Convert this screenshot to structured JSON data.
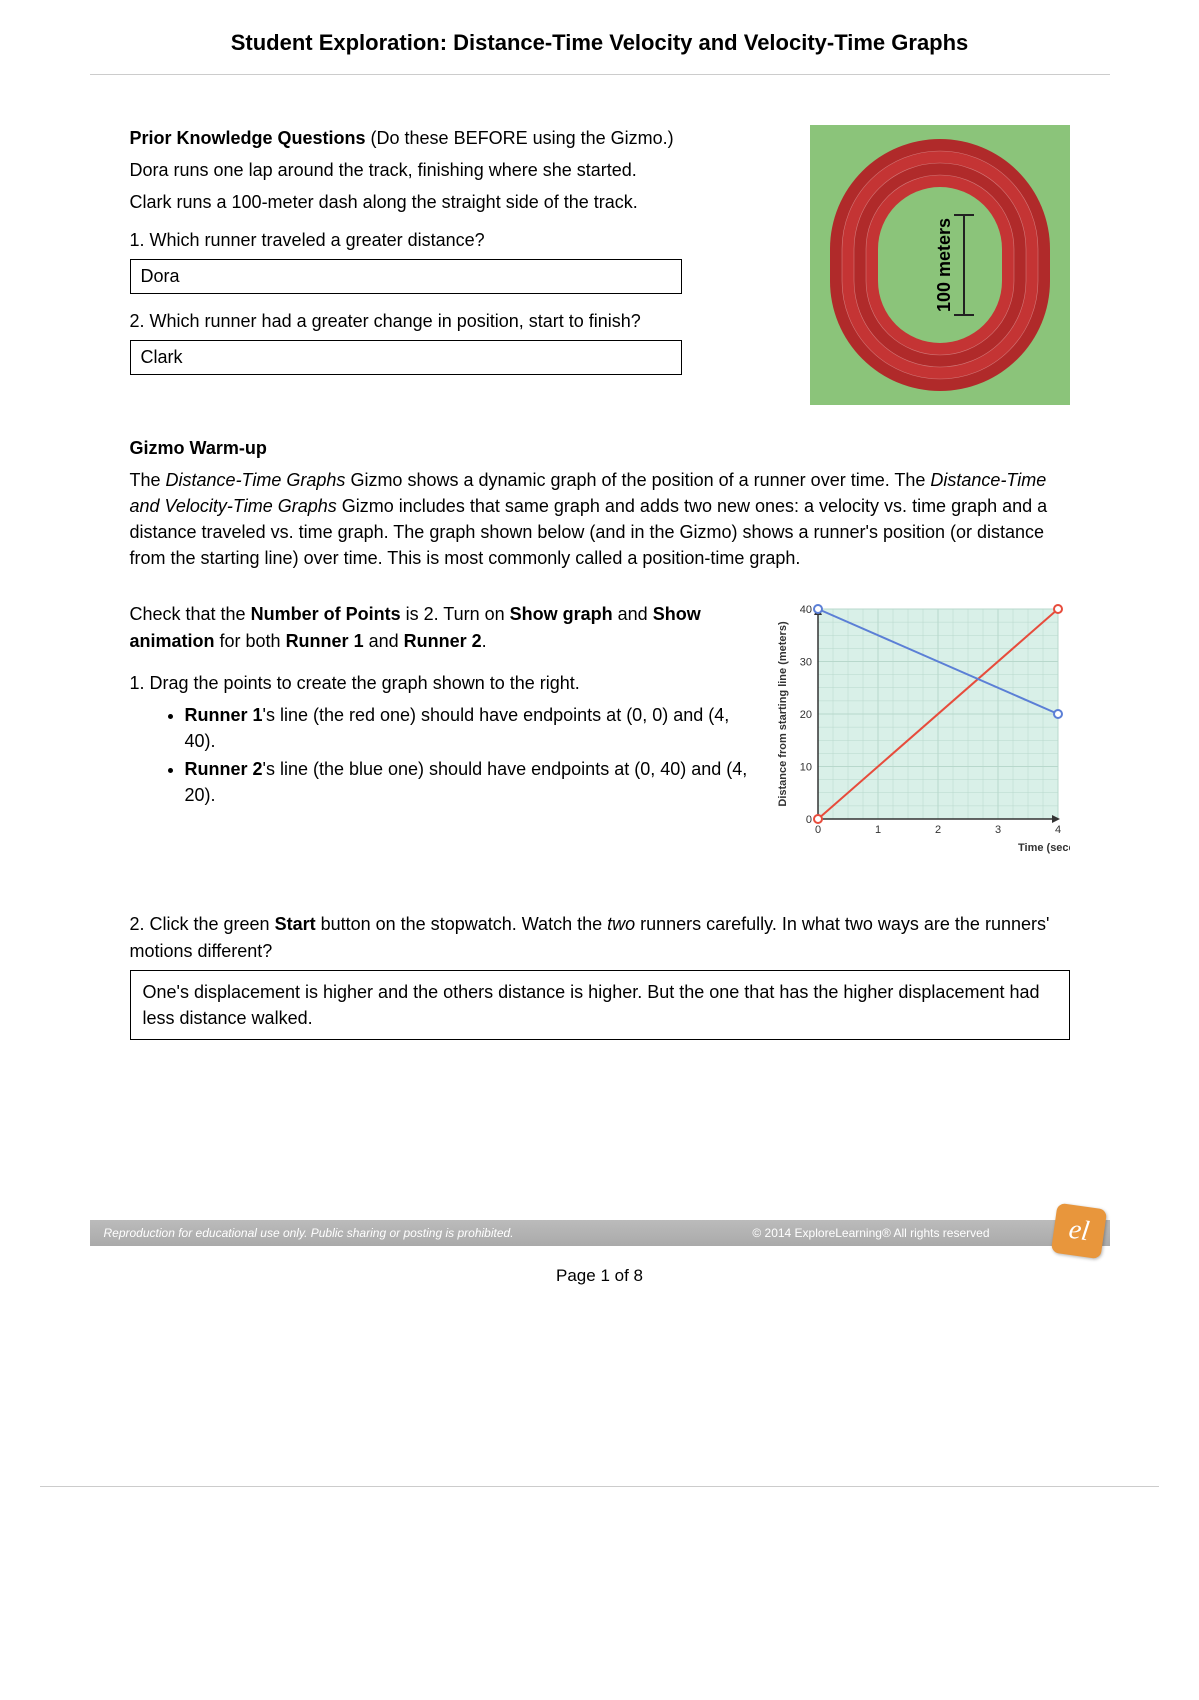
{
  "header": {
    "title": "Student Exploration: Distance-Time Velocity and Velocity-Time Graphs"
  },
  "prior": {
    "heading": "Prior Knowledge Questions",
    "heading_note": " (Do these BEFORE using the Gizmo.)",
    "intro1": "Dora runs one lap around the track, finishing where she started.",
    "intro2": "Clark runs a 100-meter dash along the straight side of the track.",
    "q1": "1. Which runner traveled a greater distance?",
    "a1": "Dora",
    "q2": "2. Which runner had a greater change in position, start to finish?",
    "a2": "Clark"
  },
  "track": {
    "bg_color": "#8bc47a",
    "lane_colors": [
      "#b02a2a",
      "#c43434",
      "#b02a2a",
      "#c43434"
    ],
    "line_color": "#222",
    "label": "100 meters",
    "label_fontsize": 18
  },
  "warmup": {
    "title": "Gizmo Warm-up",
    "p1a": "The ",
    "p1b": "Distance-Time Graphs",
    "p1c": " Gizmo shows a dynamic graph of the position of a runner over time. The ",
    "p1d": "Distance-Time and Velocity-Time Graphs",
    "p1e": " Gizmo includes that same graph and adds two new ones: a velocity vs. time graph and a distance traveled vs. time graph. The graph shown below (and in the Gizmo) shows a runner's position (or distance from the starting line) over time. This is most commonly called a position-time graph.",
    "instr_a": "Check that the ",
    "instr_b": "Number of Points",
    "instr_c": " is 2. Turn on ",
    "instr_d": "Show graph",
    "instr_e": " and ",
    "instr_f": "Show animation",
    "instr_g": " for both ",
    "instr_h": "Runner 1",
    "instr_i": " and ",
    "instr_j": "Runner 2",
    "instr_k": ".",
    "step1": "1. Drag the points to create the graph shown to the right.",
    "li1a": "Runner 1",
    "li1b": "'s line (the red one) should have endpoints at (0, 0) and (4, 40).",
    "li2a": "Runner 2",
    "li2b": "'s line (the blue one) should have endpoints at (0, 40) and (4, 20).",
    "step2a": "2. Click the green ",
    "step2b": "Start",
    "step2c": " button on the stopwatch. Watch the ",
    "step2d": "two",
    "step2e": " runners carefully. In what two ways are the runners' motions different?",
    "a2": "One's displacement is higher and the others distance is higher. But the one that has the higher displacement had less distance walked."
  },
  "graph": {
    "bg_color": "#d9f0e8",
    "grid_color": "#b8d8cc",
    "axis_color": "#333",
    "xlabel": "Time (seconds)",
    "ylabel": "Distance from starting line (meters)",
    "xlim": [
      0,
      4
    ],
    "ylim": [
      0,
      40
    ],
    "xticks": [
      0,
      1,
      2,
      3,
      4
    ],
    "yticks": [
      0,
      10,
      20,
      30,
      40
    ],
    "tick_fontsize": 11,
    "label_fontsize": 11,
    "series": [
      {
        "name": "Runner 1",
        "color": "#e74c3c",
        "points": [
          [
            0,
            0
          ],
          [
            4,
            40
          ]
        ]
      },
      {
        "name": "Runner 2",
        "color": "#5b7fd6",
        "points": [
          [
            0,
            40
          ],
          [
            4,
            20
          ]
        ]
      }
    ]
  },
  "footer": {
    "left": "Reproduction for educational use only. Public sharing or posting is prohibited.",
    "right": "© 2014 ExploreLearning®  All rights reserved",
    "logo_text": "el",
    "page": "Page 1 of 8"
  }
}
